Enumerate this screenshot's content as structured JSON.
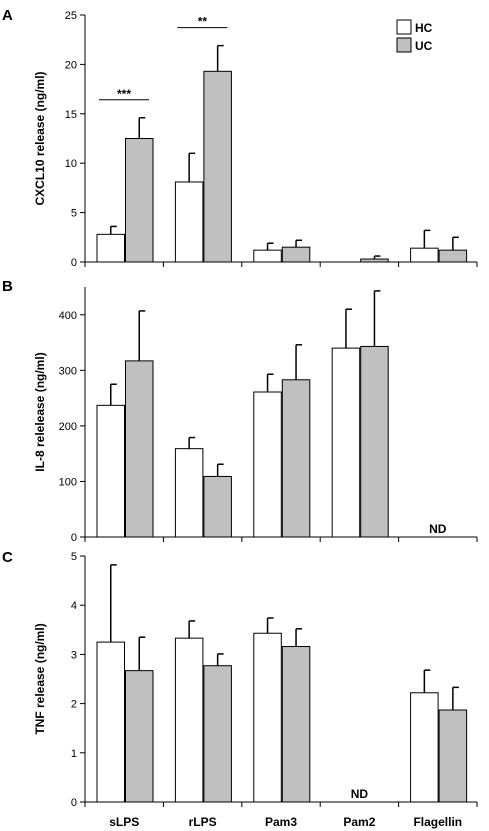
{
  "colors": {
    "hc": "#ffffff",
    "uc": "#c0c0c0",
    "stroke": "#000000"
  },
  "legend": {
    "placement": "top-right",
    "items": [
      {
        "label": "HC",
        "color": "#ffffff"
      },
      {
        "label": "UC",
        "color": "#c0c0c0"
      }
    ]
  },
  "chart_data": [
    {
      "type": "bar",
      "panel": "A",
      "categories": [
        "sLPS",
        "rLPS",
        "Pam3",
        "Pam2",
        "Flagellin"
      ],
      "ylabel": "CXCL10 release (ng/ml)",
      "ylim": [
        0,
        25
      ],
      "yticks": [
        0,
        5,
        10,
        15,
        20,
        25
      ],
      "series": [
        {
          "name": "HC",
          "values": [
            2.8,
            8.1,
            1.2,
            0.0,
            1.4
          ],
          "errors": [
            0.8,
            2.9,
            0.7,
            0.0,
            1.8
          ]
        },
        {
          "name": "UC",
          "values": [
            12.5,
            19.3,
            1.5,
            0.3,
            1.2
          ],
          "errors": [
            2.1,
            2.6,
            0.7,
            0.3,
            1.3
          ]
        }
      ],
      "annotations": [
        {
          "text": "***",
          "category": 0
        },
        {
          "text": "**",
          "category": 1
        }
      ]
    },
    {
      "type": "bar",
      "panel": "B",
      "categories": [
        "sLPS",
        "rLPS",
        "Pam3",
        "Pam2",
        "Flagellin"
      ],
      "ylabel": "IL-8 relelease (ng/ml)",
      "ylim": [
        0,
        450
      ],
      "yticks": [
        0,
        100,
        200,
        300,
        400
      ],
      "series": [
        {
          "name": "HC",
          "values": [
            237,
            159,
            261,
            340,
            null
          ],
          "errors": [
            38,
            20,
            32,
            70,
            0
          ]
        },
        {
          "name": "UC",
          "values": [
            317,
            109,
            283,
            343,
            null
          ],
          "errors": [
            90,
            22,
            63,
            100,
            0
          ]
        }
      ],
      "nd": [
        {
          "text": "ND",
          "category": 4
        }
      ]
    },
    {
      "type": "bar",
      "panel": "C",
      "categories": [
        "sLPS",
        "rLPS",
        "Pam3",
        "Pam2",
        "Flagellin"
      ],
      "ylabel": "TNF release (ng/ml)",
      "ylim": [
        0,
        5
      ],
      "yticks": [
        0,
        1,
        2,
        3,
        4,
        5
      ],
      "series": [
        {
          "name": "HC",
          "values": [
            3.25,
            3.33,
            3.43,
            null,
            2.22
          ],
          "errors": [
            1.57,
            0.35,
            0.31,
            0,
            0.46
          ]
        },
        {
          "name": "UC",
          "values": [
            2.67,
            2.77,
            3.16,
            null,
            1.87
          ],
          "errors": [
            0.68,
            0.24,
            0.36,
            0,
            0.46
          ]
        }
      ],
      "nd": [
        {
          "text": "ND",
          "category": 3
        }
      ]
    }
  ]
}
